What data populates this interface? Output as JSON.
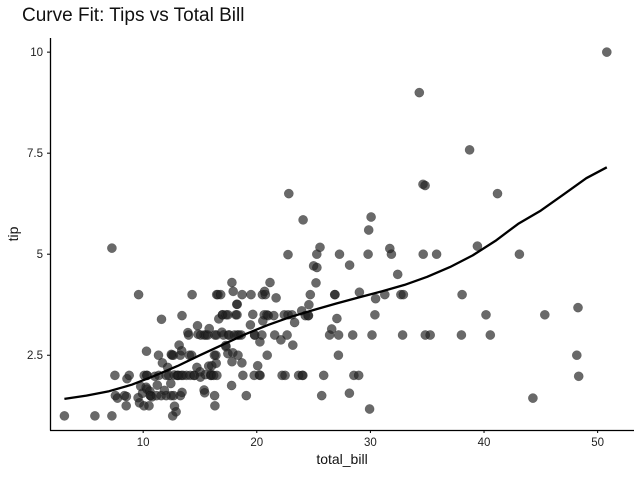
{
  "chart_data": {
    "type": "scatter",
    "title": "Curve Fit: Tips vs Total Bill",
    "xlabel": "total_bill",
    "ylabel": "tip",
    "xlim": [
      1.8,
      53.2
    ],
    "ylim": [
      0.65,
      10.35
    ],
    "xticks": [
      10,
      20,
      30,
      40,
      50
    ],
    "xtick_labels": [
      "10",
      "20",
      "30",
      "40",
      "50"
    ],
    "yticks": [
      2.5,
      5,
      7.5,
      10
    ],
    "ytick_labels": [
      "2.5",
      "5",
      "7.5",
      "10"
    ],
    "grid": false,
    "legend": "none",
    "colors": {
      "points": "#222222",
      "curve": "#000000",
      "axes": "#000000"
    },
    "series": [
      {
        "kind": "points",
        "x": [
          3.07,
          5.75,
          7.25,
          7.25,
          7.51,
          7.56,
          7.74,
          8.35,
          8.51,
          8.52,
          8.58,
          8.77,
          9.55,
          9.6,
          9.68,
          9.78,
          9.94,
          10.07,
          10.09,
          10.27,
          10.29,
          10.33,
          10.34,
          10.34,
          10.51,
          10.59,
          10.63,
          10.65,
          10.77,
          11.02,
          11.17,
          11.24,
          11.35,
          11.38,
          11.59,
          11.61,
          11.69,
          11.87,
          12.02,
          12.03,
          12.16,
          12.26,
          12.43,
          12.46,
          12.48,
          12.54,
          12.6,
          12.66,
          12.69,
          12.74,
          12.76,
          12.9,
          13.0,
          13.03,
          13.13,
          13.16,
          13.27,
          13.28,
          13.37,
          13.39,
          13.42,
          13.42,
          13.51,
          13.81,
          13.94,
          14.0,
          14.07,
          14.15,
          14.26,
          14.31,
          14.48,
          14.52,
          14.73,
          14.78,
          14.83,
          15.01,
          15.04,
          15.06,
          15.36,
          15.38,
          15.42,
          15.48,
          15.53,
          15.69,
          15.77,
          15.81,
          15.95,
          15.98,
          16.0,
          16.04,
          16.21,
          16.27,
          16.29,
          16.31,
          16.32,
          16.4,
          16.43,
          16.45,
          16.47,
          16.49,
          16.58,
          16.66,
          16.82,
          16.93,
          16.97,
          16.99,
          17.07,
          17.26,
          17.29,
          17.31,
          17.46,
          17.47,
          17.51,
          17.59,
          17.78,
          17.81,
          17.82,
          17.89,
          17.92,
          18.04,
          18.15,
          18.24,
          18.26,
          18.28,
          18.29,
          18.35,
          18.43,
          18.64,
          18.69,
          18.71,
          18.78,
          19.08,
          19.44,
          19.49,
          19.65,
          19.77,
          19.81,
          19.82,
          20.08,
          20.23,
          20.27,
          20.29,
          20.45,
          20.49,
          20.53,
          20.65,
          20.69,
          20.76,
          20.9,
          20.92,
          21.01,
          21.16,
          21.5,
          21.58,
          21.7,
          22.12,
          22.23,
          22.42,
          22.49,
          22.67,
          22.75,
          22.76,
          22.82,
          23.1,
          23.17,
          23.33,
          23.68,
          23.95,
          24.01,
          24.06,
          24.08,
          24.27,
          24.52,
          24.55,
          24.59,
          24.71,
          25.0,
          25.21,
          25.28,
          25.29,
          25.56,
          25.71,
          25.89,
          26.41,
          26.59,
          26.86,
          26.88,
          27.05,
          27.18,
          27.2,
          27.28,
          28.15,
          28.17,
          28.44,
          28.55,
          28.97,
          29.03,
          29.8,
          29.85,
          29.93,
          30.06,
          30.14,
          30.4,
          30.46,
          31.27,
          31.71,
          31.85,
          32.4,
          32.68,
          32.83,
          32.9,
          34.3,
          34.63,
          34.65,
          34.81,
          34.83,
          35.26,
          35.83,
          38.01,
          38.07,
          38.73,
          39.42,
          40.17,
          40.55,
          41.19,
          43.11,
          44.3,
          45.35,
          48.17,
          48.27,
          48.33,
          50.81
        ],
        "y": [
          1.0,
          1.0,
          1.0,
          5.15,
          2.0,
          1.5,
          1.44,
          1.5,
          1.25,
          1.48,
          1.92,
          2.0,
          1.45,
          4.0,
          1.32,
          1.73,
          1.56,
          1.25,
          2.0,
          1.71,
          2.6,
          2.0,
          1.66,
          2.0,
          1.25,
          1.61,
          1.5,
          1.5,
          1.47,
          1.98,
          1.5,
          1.76,
          2.5,
          2.0,
          1.5,
          3.39,
          2.31,
          1.63,
          2.0,
          1.5,
          2.2,
          2.0,
          1.8,
          1.5,
          2.52,
          2.5,
          1.0,
          2.5,
          1.5,
          2.01,
          1.24,
          1.1,
          2.0,
          2.0,
          2.0,
          2.75,
          2.5,
          1.5,
          2.0,
          2.61,
          1.58,
          3.48,
          2.0,
          2.0,
          3.06,
          3.0,
          2.5,
          2.0,
          2.5,
          4.0,
          2.0,
          2.0,
          2.2,
          3.23,
          3.02,
          2.09,
          1.96,
          3.0,
          1.64,
          3.0,
          1.57,
          2.02,
          3.0,
          3.0,
          2.23,
          3.16,
          2.0,
          2.03,
          2.0,
          2.24,
          2.0,
          2.5,
          1.5,
          1.25,
          3.0,
          2.5,
          2.3,
          3.0,
          4.0,
          2.0,
          4.0,
          3.4,
          4.0,
          3.07,
          3.5,
          3.5,
          3.0,
          2.74,
          2.71,
          3.5,
          2.54,
          3.5,
          3.0,
          3.0,
          1.75,
          4.3,
          2.34,
          2.56,
          4.08,
          3.0,
          3.5,
          3.76,
          3.5,
          3.76,
          3.0,
          2.5,
          3.0,
          3.0,
          2.31,
          4.0,
          2.0,
          1.5,
          3.25,
          4.0,
          3.51,
          2.0,
          3.0,
          3.0,
          2.24,
          2.01,
          2.83,
          2.0,
          3.0,
          4.0,
          3.35,
          3.5,
          4.08,
          4.0,
          3.5,
          2.5,
          3.48,
          4.3,
          3.48,
          3.0,
          3.92,
          2.88,
          2.0,
          3.5,
          2.0,
          3.0,
          4.99,
          3.5,
          6.5,
          3.5,
          2.75,
          3.31,
          2.0,
          3.6,
          2.0,
          2.0,
          5.85,
          3.48,
          3.48,
          3.48,
          3.75,
          4.0,
          4.71,
          4.29,
          5.0,
          4.67,
          5.17,
          1.5,
          2.0,
          3.0,
          3.15,
          4.0,
          4.0,
          3.41,
          2.5,
          3.0,
          5.0,
          1.56,
          4.73,
          3.0,
          2.0,
          2.0,
          4.06,
          5.0,
          5.6,
          1.17,
          5.92,
          3.0,
          3.5,
          3.9,
          4.0,
          5.14,
          5.0,
          4.5,
          4.0,
          3.0,
          4.0,
          9.0,
          6.73,
          5.0,
          6.7,
          3.0,
          3.0,
          5.0,
          3.0,
          4.0,
          7.58,
          5.2,
          3.5,
          3.0,
          6.5,
          5.0,
          1.44,
          3.5,
          2.5,
          3.68,
          1.98,
          10.0
        ],
        "color": "#222222"
      },
      {
        "kind": "fit-curve",
        "x": [
          3.07,
          5,
          7,
          9,
          11,
          13,
          15,
          17,
          19,
          21,
          23,
          25,
          27,
          29,
          31,
          33,
          35,
          37,
          39,
          41,
          43,
          45,
          47,
          49,
          50.81
        ],
        "y": [
          1.42,
          1.5,
          1.61,
          1.77,
          1.99,
          2.23,
          2.5,
          2.76,
          3.02,
          3.25,
          3.45,
          3.62,
          3.78,
          3.93,
          4.08,
          4.24,
          4.44,
          4.68,
          4.97,
          5.33,
          5.75,
          6.08,
          6.48,
          6.88,
          7.15
        ],
        "color": "#000000"
      }
    ]
  }
}
